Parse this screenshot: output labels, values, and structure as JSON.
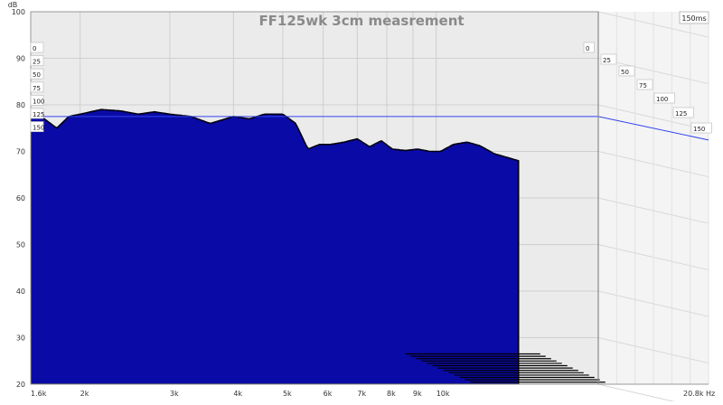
{
  "chart_data": {
    "type": "waterfall",
    "title": "FF125wk 3cm measrement",
    "ylabel": "dB",
    "x_unit": "Hz",
    "ylim": [
      20,
      100
    ],
    "y_ticks": [
      "100",
      "90",
      "80",
      "70",
      "60",
      "50",
      "40",
      "30",
      "20"
    ],
    "x_ticks": [
      "1.6k",
      "2k",
      "3k",
      "4k",
      "5k",
      "6k",
      "7k",
      "8k",
      "9k",
      "10k",
      "20.8k"
    ],
    "time_unit_label": "150ms",
    "time_slices_left": [
      "0",
      "25",
      "50",
      "75",
      "100",
      "125",
      "150"
    ],
    "time_slices_right": [
      "0",
      "25",
      "50",
      "75",
      "100",
      "125",
      "150"
    ],
    "reference_level_db": 77.5,
    "fill_color": "#0a0aa6",
    "front_curve": {
      "name": "0 ms",
      "points": [
        [
          1600,
          79
        ],
        [
          1700,
          77
        ],
        [
          1800,
          75
        ],
        [
          1900,
          77.5
        ],
        [
          2000,
          78
        ],
        [
          2200,
          79
        ],
        [
          2400,
          78.7
        ],
        [
          2600,
          78
        ],
        [
          2800,
          78.5
        ],
        [
          3000,
          78
        ],
        [
          3300,
          77.5
        ],
        [
          3600,
          76
        ],
        [
          4000,
          77.5
        ],
        [
          4300,
          77
        ],
        [
          4600,
          78
        ],
        [
          5000,
          78
        ],
        [
          5300,
          76
        ],
        [
          5600,
          70.5
        ],
        [
          5900,
          71.5
        ],
        [
          6200,
          71.5
        ],
        [
          6600,
          72
        ],
        [
          7000,
          72.7
        ],
        [
          7400,
          71
        ],
        [
          7800,
          72.3
        ],
        [
          8200,
          70.5
        ],
        [
          8700,
          70.2
        ],
        [
          9200,
          70.5
        ],
        [
          9700,
          70
        ],
        [
          10200,
          70
        ],
        [
          10800,
          71.5
        ],
        [
          11500,
          72
        ],
        [
          12200,
          71.2
        ],
        [
          13000,
          69.5
        ],
        [
          14500,
          68
        ]
      ]
    }
  }
}
